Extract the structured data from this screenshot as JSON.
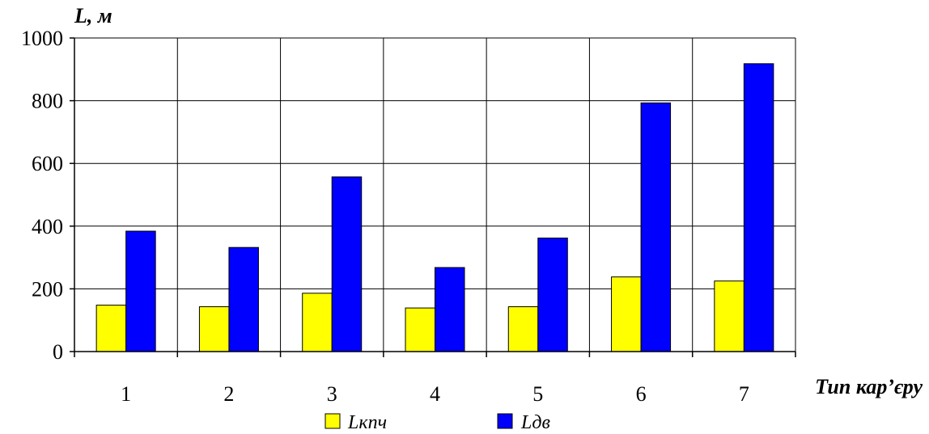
{
  "chart_data": {
    "type": "bar",
    "ylabel": "L, м",
    "xlabel": "Тип кар’єру",
    "categories": [
      "1",
      "2",
      "3",
      "4",
      "5",
      "6",
      "7"
    ],
    "series": [
      {
        "name": "Lкпч",
        "color": "#ffff00",
        "values": [
          148,
          143,
          186,
          139,
          143,
          238,
          225
        ]
      },
      {
        "name": "Lдв",
        "color": "#0000ff",
        "values": [
          384,
          332,
          557,
          268,
          362,
          793,
          918
        ]
      }
    ],
    "ylim": [
      0,
      1000
    ],
    "yticks": [
      0,
      200,
      400,
      600,
      800,
      1000
    ],
    "grid": true,
    "legend_position": "bottom"
  }
}
